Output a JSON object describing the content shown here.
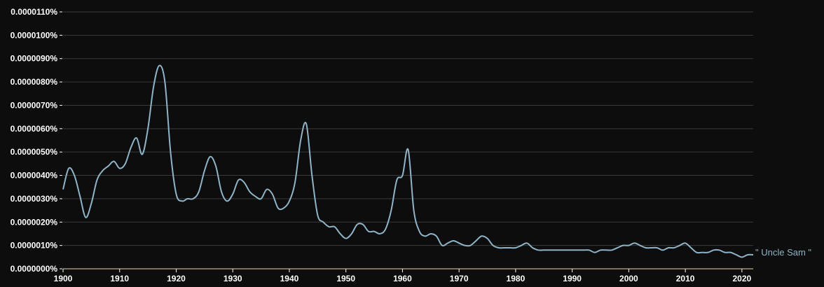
{
  "chart_data": {
    "type": "line",
    "title": "",
    "xlabel": "",
    "ylabel": "",
    "xlim": [
      1900,
      2022
    ],
    "ylim": [
      0,
      1.1e-05
    ],
    "grid": true,
    "legend": "end-of-line label",
    "colors": {
      "series": "#8fb4c8",
      "background": "#0d0d0d",
      "grid": "#3a3a3a",
      "axis": "#e8d9b0"
    },
    "x_ticks": [
      1900,
      1910,
      1920,
      1930,
      1940,
      1950,
      1960,
      1970,
      1980,
      1990,
      2000,
      2010,
      2020
    ],
    "x_tick_labels": [
      "1900",
      "1910",
      "1920",
      "1930",
      "1940",
      "1950",
      "1960",
      "1970",
      "1980",
      "1990",
      "2000",
      "2010",
      "2020"
    ],
    "y_ticks": [
      0,
      1e-06,
      2e-06,
      3e-06,
      4e-06,
      5e-06,
      6e-06,
      7e-06,
      8e-06,
      9e-06,
      1e-05,
      1.1e-05
    ],
    "y_tick_labels": [
      "0.0000000%",
      "0.0000010%",
      "0.0000020%",
      "0.0000030%",
      "0.0000040%",
      "0.0000050%",
      "0.0000060%",
      "0.0000070%",
      "0.0000080%",
      "0.0000090%",
      "0.0000100%",
      "0.0000110%"
    ],
    "series": [
      {
        "name": "\" Uncle Sam \"",
        "x": [
          1900,
          1901,
          1902,
          1903,
          1904,
          1905,
          1906,
          1907,
          1908,
          1909,
          1910,
          1911,
          1912,
          1913,
          1914,
          1915,
          1916,
          1917,
          1918,
          1919,
          1920,
          1921,
          1922,
          1923,
          1924,
          1925,
          1926,
          1927,
          1928,
          1929,
          1930,
          1931,
          1932,
          1933,
          1934,
          1935,
          1936,
          1937,
          1938,
          1939,
          1940,
          1941,
          1942,
          1943,
          1944,
          1945,
          1946,
          1947,
          1948,
          1949,
          1950,
          1951,
          1952,
          1953,
          1954,
          1955,
          1956,
          1957,
          1958,
          1959,
          1960,
          1961,
          1962,
          1963,
          1964,
          1965,
          1966,
          1967,
          1968,
          1969,
          1970,
          1971,
          1972,
          1973,
          1974,
          1975,
          1976,
          1977,
          1978,
          1979,
          1980,
          1981,
          1982,
          1983,
          1984,
          1985,
          1986,
          1987,
          1988,
          1989,
          1990,
          1991,
          1992,
          1993,
          1994,
          1995,
          1996,
          1997,
          1998,
          1999,
          2000,
          2001,
          2002,
          2003,
          2004,
          2005,
          2006,
          2007,
          2008,
          2009,
          2010,
          2011,
          2012,
          2013,
          2014,
          2015,
          2016,
          2017,
          2018,
          2019,
          2020,
          2021,
          2022
        ],
        "values": [
          3.4e-06,
          4.3e-06,
          4e-06,
          3.1e-06,
          2.2e-06,
          2.8e-06,
          3.8e-06,
          4.2e-06,
          4.4e-06,
          4.6e-06,
          4.3e-06,
          4.5e-06,
          5.2e-06,
          5.6e-06,
          4.9e-06,
          6e-06,
          7.8e-06,
          8.7e-06,
          8e-06,
          5e-06,
          3.2e-06,
          2.9e-06,
          3e-06,
          3e-06,
          3.3e-06,
          4.2e-06,
          4.8e-06,
          4.4e-06,
          3.3e-06,
          2.9e-06,
          3.2e-06,
          3.8e-06,
          3.7e-06,
          3.3e-06,
          3.1e-06,
          3e-06,
          3.4e-06,
          3.2e-06,
          2.6e-06,
          2.6e-06,
          2.9e-06,
          3.7e-06,
          5.5e-06,
          6.2e-06,
          4e-06,
          2.3e-06,
          2e-06,
          1.8e-06,
          1.8e-06,
          1.5e-06,
          1.3e-06,
          1.5e-06,
          1.9e-06,
          1.9e-06,
          1.6e-06,
          1.6e-06,
          1.5e-06,
          1.7e-06,
          2.5e-06,
          3.8e-06,
          4e-06,
          5.1e-06,
          2.5e-06,
          1.6e-06,
          1.4e-06,
          1.5e-06,
          1.4e-06,
          1e-06,
          1.1e-06,
          1.2e-06,
          1.1e-06,
          1e-06,
          1e-06,
          1.2e-06,
          1.4e-06,
          1.3e-06,
          1e-06,
          9e-07,
          9e-07,
          9e-07,
          9e-07,
          1e-06,
          1.1e-06,
          9e-07,
          8e-07,
          8e-07,
          8e-07,
          8e-07,
          8e-07,
          8e-07,
          8e-07,
          8e-07,
          8e-07,
          8e-07,
          7e-07,
          8e-07,
          8e-07,
          8e-07,
          9e-07,
          1e-06,
          1e-06,
          1.1e-06,
          1e-06,
          9e-07,
          9e-07,
          9e-07,
          8e-07,
          9e-07,
          9e-07,
          1e-06,
          1.1e-06,
          9e-07,
          7e-07,
          7e-07,
          7e-07,
          8e-07,
          8e-07,
          7e-07,
          7e-07,
          6e-07,
          5e-07,
          6e-07,
          6e-07
        ]
      }
    ]
  }
}
